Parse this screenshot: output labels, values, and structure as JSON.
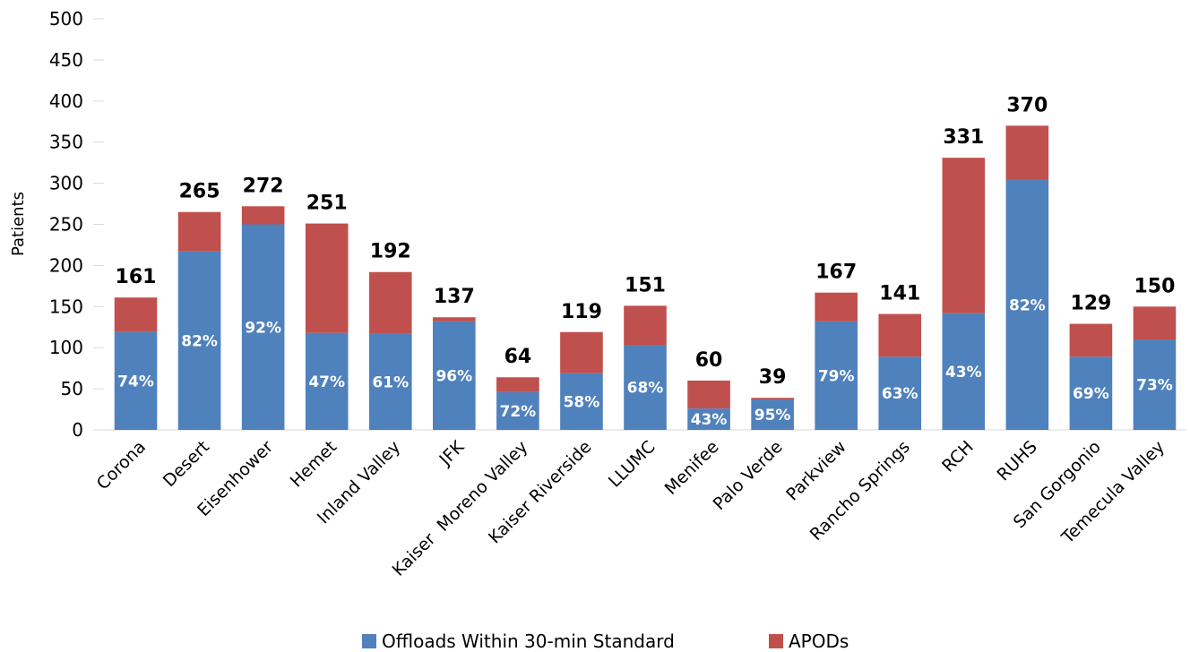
{
  "chart_data": {
    "type": "bar",
    "stacked": true,
    "title": "",
    "xlabel": "",
    "ylabel": "Patients",
    "ylim": [
      0,
      500
    ],
    "yticks": [
      0,
      50,
      100,
      150,
      200,
      250,
      300,
      350,
      400,
      450,
      500
    ],
    "grid": false,
    "legend_position": "bottom",
    "categories": [
      "Corona",
      "Desert",
      "Eisenhower",
      "Hemet",
      "Inland Valley",
      "JFK",
      "Kaiser  Moreno Valley",
      "Kaiser Riverside",
      "LLUMC",
      "Menifee",
      "Palo Verde",
      "Parkview",
      "Rancho Springs",
      "RCH",
      "RUHS",
      "San Gorgonio",
      "Temecula Valley"
    ],
    "series": [
      {
        "name": "Offloads Within 30-min Standard",
        "color": "#4f81bd",
        "values": [
          119,
          217,
          250,
          118,
          117,
          132,
          46,
          69,
          103,
          26,
          37,
          132,
          89,
          142,
          304,
          89,
          110
        ],
        "labels": [
          "74%",
          "82%",
          "92%",
          "47%",
          "61%",
          "96%",
          "72%",
          "58%",
          "68%",
          "43%",
          "95%",
          "79%",
          "63%",
          "43%",
          "82%",
          "69%",
          "73%"
        ]
      },
      {
        "name": "APODs",
        "color": "#c0504d",
        "values": [
          42,
          48,
          22,
          133,
          75,
          5,
          18,
          50,
          48,
          34,
          2,
          35,
          52,
          189,
          66,
          40,
          40
        ]
      }
    ],
    "totals": [
      "161",
      "265",
      "272",
      "251",
      "192",
      "137",
      "64",
      "119",
      "151",
      "60",
      "39",
      "167",
      "141",
      "331",
      "370",
      "129",
      "150"
    ]
  }
}
